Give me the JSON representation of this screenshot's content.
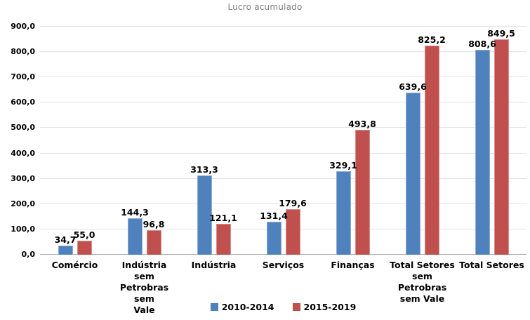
{
  "chart_data": {
    "type": "bar",
    "title": "Lucro acumulado",
    "categories": [
      "Comércio",
      "Indústria sem\nPetrobras sem\nVale",
      "Indústria",
      "Serviços",
      "Finanças",
      "Total Setores\nsem Petrobras\nsem Vale",
      "Total Setores"
    ],
    "series": [
      {
        "name": "2010-2014",
        "color": "#4F81BD",
        "values": [
          34.7,
          144.3,
          313.3,
          131.4,
          329.1,
          639.6,
          808.6
        ],
        "labels": [
          "34,7",
          "144,3",
          "313,3",
          "131,4",
          "329,1",
          "639,6",
          "808,6"
        ]
      },
      {
        "name": "2015-2019",
        "color": "#C0504D",
        "values": [
          55.0,
          96.8,
          121.1,
          179.6,
          493.8,
          825.2,
          849.5
        ],
        "labels": [
          "55,0",
          "96,8",
          "121,1",
          "179,6",
          "493,8",
          "825,2",
          "849,5"
        ]
      }
    ],
    "ylim": [
      0,
      900
    ],
    "y_tick_step": 100,
    "y_tick_labels": [
      "0,0",
      "100,0",
      "200,0",
      "300,0",
      "400,0",
      "500,0",
      "600,0",
      "700,0",
      "800,0",
      "900,0"
    ],
    "grid": "horizontal",
    "data_labels": true,
    "legend_position": "bottom"
  },
  "colors": {
    "series_2010_2014": "#4F81BD",
    "series_2015_2019": "#C0504D",
    "gridline": "#E3E3E3",
    "axis_line": "#A9A9A9",
    "title_text": "#7F7F7F",
    "label_text": "#000000",
    "background": "#FFFFFF"
  }
}
